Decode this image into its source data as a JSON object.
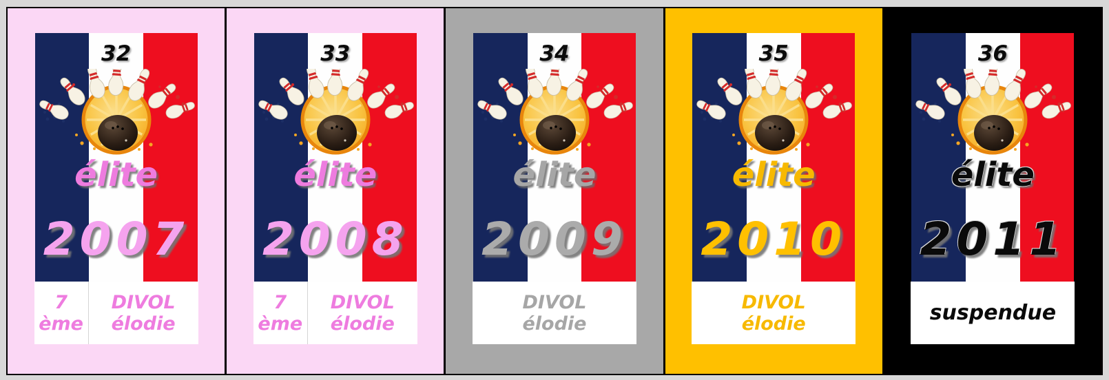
{
  "canvas": {
    "background": "#D8D8D8",
    "frame_color": "#000000"
  },
  "flag": {
    "navy": "#16265C",
    "white": "#FEFEFE",
    "red": "#EE0E1F"
  },
  "panels": [
    {
      "number": "32",
      "category": "élite",
      "year": "2007",
      "rank_number": "7",
      "rank_suffix": "ème",
      "holder_last_name": "DIVOL",
      "holder_first_name": "élodie",
      "colors": {
        "bg": "#FBD7F5",
        "accent": "#EE7CDF",
        "year": "#F5A3EE",
        "glow": "transparent"
      }
    },
    {
      "number": "33",
      "category": "élite",
      "year": "2008",
      "rank_number": "7",
      "rank_suffix": "ème",
      "holder_last_name": "DIVOL",
      "holder_first_name": "élodie",
      "colors": {
        "bg": "#FBD7F5",
        "accent": "#EE7CDF",
        "year": "#F5A3EE",
        "glow": "transparent"
      }
    },
    {
      "number": "34",
      "category": "élite",
      "year": "2009",
      "holder_last_name": "DIVOL",
      "holder_first_name": "élodie",
      "colors": {
        "bg": "#A8A8A8",
        "accent": "#A6A6A6",
        "year": "#ABABAB",
        "glow": "transparent"
      }
    },
    {
      "number": "35",
      "category": "élite",
      "year": "2010",
      "holder_last_name": "DIVOL",
      "holder_first_name": "élodie",
      "colors": {
        "bg": "#FFC000",
        "accent": "#F7B900",
        "year": "#FFC000",
        "glow": "transparent"
      }
    },
    {
      "number": "36",
      "category": "élite",
      "year": "2011",
      "status": "suspendue",
      "colors": {
        "bg": "#000000",
        "accent": "#0A0A0A",
        "year": "#0A0A0A",
        "glow": "#DCDCDC"
      }
    }
  ],
  "bowling_icon": {
    "disc": "#F5A623",
    "disc_light": "#FBDE8A",
    "disc_rim": "#E8860C",
    "ball_dark": "#17100B",
    "ball_light": "#5C4837",
    "pin_body": "#F7F2E4",
    "pin_stripe": "#D42A2A",
    "splatter_blue": "#1D2F66",
    "splatter_red": "#D42A2A"
  }
}
